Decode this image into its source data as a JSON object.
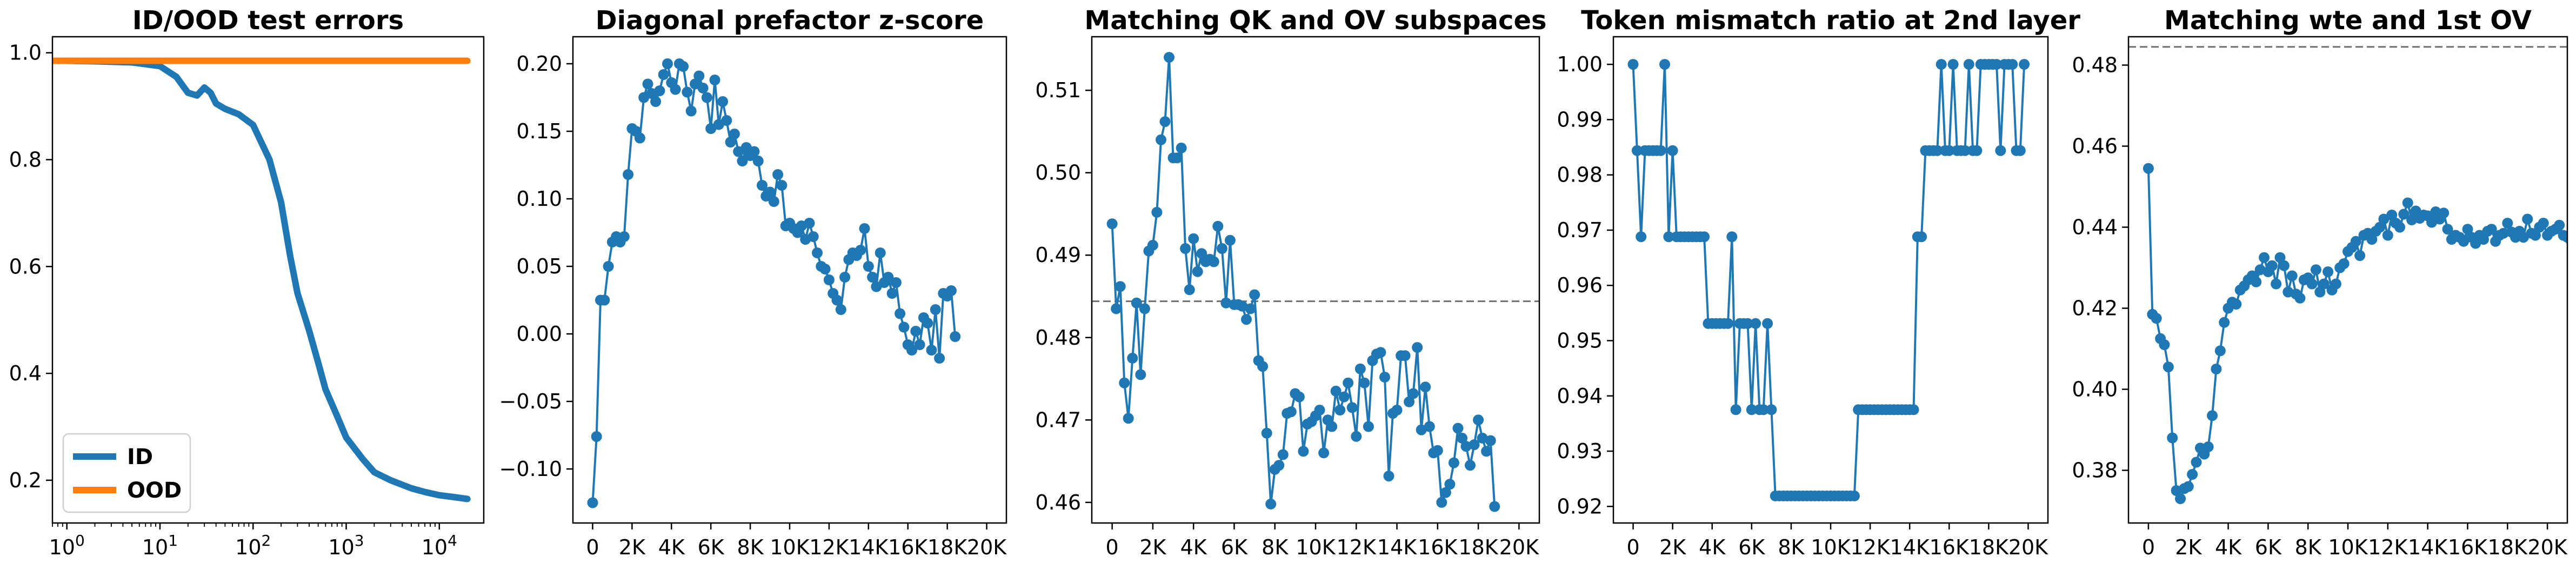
{
  "chart_data": [
    {
      "type": "line",
      "title": "ID/OOD test errors",
      "xscale": "log",
      "xlim": [
        0.7,
        30000
      ],
      "ylim": [
        0.12,
        1.03
      ],
      "xticks": [
        1,
        10,
        100,
        1000,
        10000
      ],
      "xtick_labels": [
        {
          "base": "10",
          "exp": "0"
        },
        {
          "base": "10",
          "exp": "1"
        },
        {
          "base": "10",
          "exp": "2"
        },
        {
          "base": "10",
          "exp": "3"
        },
        {
          "base": "10",
          "exp": "4"
        }
      ],
      "yticks": [
        0.2,
        0.4,
        0.6,
        0.8,
        1.0
      ],
      "ytick_labels": [
        "0.2",
        "0.4",
        "0.6",
        "0.8",
        "1.0"
      ],
      "legend": {
        "position": "lower-left"
      },
      "series": [
        {
          "name": "ID",
          "color": "#1f77b4",
          "x": [
            0.7,
            1,
            2,
            5,
            10,
            15,
            20,
            25,
            30,
            35,
            40,
            50,
            70,
            100,
            150,
            200,
            250,
            300,
            400,
            500,
            600,
            800,
            1000,
            1500,
            2000,
            3000,
            5000,
            7000,
            10000,
            15000,
            20000
          ],
          "y": [
            0.985,
            0.985,
            0.984,
            0.982,
            0.975,
            0.955,
            0.925,
            0.92,
            0.935,
            0.925,
            0.905,
            0.895,
            0.885,
            0.865,
            0.8,
            0.72,
            0.62,
            0.55,
            0.48,
            0.42,
            0.37,
            0.32,
            0.28,
            0.24,
            0.215,
            0.2,
            0.185,
            0.178,
            0.172,
            0.168,
            0.165
          ]
        },
        {
          "name": "OOD",
          "color": "#ff7f0e",
          "x": [
            0.7,
            20000
          ],
          "y": [
            0.985,
            0.985
          ]
        }
      ]
    },
    {
      "type": "line",
      "title": "Diagonal prefactor z-score",
      "xlim": [
        -1000,
        21000
      ],
      "ylim": [
        -0.14,
        0.22
      ],
      "xticks": [
        0,
        2000,
        4000,
        6000,
        8000,
        10000,
        12000,
        14000,
        16000,
        18000,
        20000
      ],
      "xtick_labels": [
        "0",
        "2K",
        "4K",
        "6K",
        "8K",
        "10K",
        "12K",
        "14K",
        "16K",
        "18K",
        "20K"
      ],
      "yticks": [
        -0.1,
        -0.05,
        0.0,
        0.05,
        0.1,
        0.15,
        0.2
      ],
      "ytick_labels": [
        "−0.10",
        "−0.05",
        "0.00",
        "0.05",
        "0.10",
        "0.15",
        "0.20"
      ],
      "x_step": 200,
      "series": [
        {
          "color": "#1f77b4",
          "values": [
            -0.125,
            -0.076,
            0.025,
            0.025,
            0.05,
            0.068,
            0.072,
            0.068,
            0.072,
            0.118,
            0.152,
            0.15,
            0.145,
            0.175,
            0.185,
            0.178,
            0.172,
            0.18,
            0.192,
            0.2,
            0.186,
            0.181,
            0.2,
            0.198,
            0.179,
            0.165,
            0.185,
            0.191,
            0.182,
            0.175,
            0.152,
            0.188,
            0.155,
            0.172,
            0.158,
            0.142,
            0.148,
            0.135,
            0.128,
            0.138,
            0.132,
            0.135,
            0.128,
            0.11,
            0.102,
            0.105,
            0.098,
            0.118,
            0.11,
            0.08,
            0.082,
            0.078,
            0.075,
            0.08,
            0.07,
            0.082,
            0.072,
            0.06,
            0.05,
            0.048,
            0.04,
            0.03,
            0.025,
            0.018,
            0.042,
            0.055,
            0.06,
            0.058,
            0.062,
            0.078,
            0.05,
            0.042,
            0.035,
            0.06,
            0.038,
            0.042,
            0.03,
            0.038,
            0.015,
            0.005,
            -0.008,
            -0.012,
            0.002,
            -0.008,
            0.012,
            0.008,
            -0.012,
            0.018,
            -0.018,
            0.03,
            0.028,
            0.032,
            -0.002
          ]
        }
      ]
    },
    {
      "type": "line",
      "title": "Matching QK and OV subspaces",
      "xlim": [
        -1000,
        21000
      ],
      "ylim": [
        0.4575,
        0.5165
      ],
      "xticks": [
        0,
        2000,
        4000,
        6000,
        8000,
        10000,
        12000,
        14000,
        16000,
        18000,
        20000
      ],
      "xtick_labels": [
        "0",
        "2K",
        "4K",
        "6K",
        "8K",
        "10K",
        "12K",
        "14K",
        "16K",
        "18K",
        "20K"
      ],
      "yticks": [
        0.46,
        0.47,
        0.48,
        0.49,
        0.5,
        0.51
      ],
      "ytick_labels": [
        "0.46",
        "0.47",
        "0.48",
        "0.49",
        "0.50",
        "0.51"
      ],
      "x_step": 200,
      "reference_line": {
        "y": 0.4844,
        "style": "dashed",
        "color": "#707070"
      },
      "series": [
        {
          "color": "#1f77b4",
          "values": [
            0.4938,
            0.4835,
            0.4862,
            0.4745,
            0.4702,
            0.4775,
            0.4842,
            0.4755,
            0.4835,
            0.4905,
            0.4912,
            0.4952,
            0.504,
            0.5062,
            0.514,
            0.5018,
            0.5018,
            0.503,
            0.4908,
            0.4858,
            0.492,
            0.488,
            0.4902,
            0.4892,
            0.4895,
            0.4892,
            0.4935,
            0.4908,
            0.4842,
            0.4918,
            0.484,
            0.484,
            0.4838,
            0.4822,
            0.4835,
            0.4852,
            0.4772,
            0.4765,
            0.4684,
            0.4598,
            0.464,
            0.4645,
            0.4658,
            0.4708,
            0.471,
            0.4732,
            0.4728,
            0.4662,
            0.4695,
            0.4698,
            0.4705,
            0.4712,
            0.466,
            0.47,
            0.4692,
            0.4735,
            0.4712,
            0.4728,
            0.4745,
            0.4715,
            0.468,
            0.4762,
            0.4745,
            0.4692,
            0.4772,
            0.478,
            0.4782,
            0.4752,
            0.4632,
            0.4708,
            0.4712,
            0.4778,
            0.4778,
            0.4722,
            0.4732,
            0.4788,
            0.4688,
            0.474,
            0.4692,
            0.466,
            0.4663,
            0.46,
            0.4612,
            0.4622,
            0.4648,
            0.469,
            0.4678,
            0.4668,
            0.4645,
            0.467,
            0.47,
            0.4678,
            0.4662,
            0.4675,
            0.4595
          ]
        }
      ]
    },
    {
      "type": "line",
      "title": "Token mismatch ratio at 2nd layer",
      "xlim": [
        -1000,
        21000
      ],
      "ylim": [
        0.917,
        1.005
      ],
      "xticks": [
        0,
        2000,
        4000,
        6000,
        8000,
        10000,
        12000,
        14000,
        16000,
        18000,
        20000
      ],
      "xtick_labels": [
        "0",
        "2K",
        "4K",
        "6K",
        "8K",
        "10K",
        "12K",
        "14K",
        "16K",
        "18K",
        "20K"
      ],
      "yticks": [
        0.92,
        0.93,
        0.94,
        0.95,
        0.96,
        0.97,
        0.98,
        0.99,
        1.0
      ],
      "ytick_labels": [
        "0.92",
        "0.93",
        "0.94",
        "0.95",
        "0.96",
        "0.97",
        "0.98",
        "0.99",
        "1.00"
      ],
      "x_step": 200,
      "series": [
        {
          "color": "#1f77b4",
          "values": [
            1.0,
            0.9844,
            0.9688,
            0.9844,
            0.9844,
            0.9844,
            0.9844,
            0.9844,
            1.0,
            0.9688,
            0.9844,
            0.9688,
            0.9688,
            0.9688,
            0.9688,
            0.9688,
            0.9688,
            0.9688,
            0.9688,
            0.9531,
            0.9531,
            0.9531,
            0.9531,
            0.9531,
            0.9531,
            0.9688,
            0.9375,
            0.9531,
            0.9531,
            0.9531,
            0.9375,
            0.9531,
            0.9375,
            0.9375,
            0.9531,
            0.9375,
            0.9219,
            0.9219,
            0.9219,
            0.9219,
            0.9219,
            0.9219,
            0.9219,
            0.9219,
            0.9219,
            0.9219,
            0.9219,
            0.9219,
            0.9219,
            0.9219,
            0.9219,
            0.9219,
            0.9219,
            0.9219,
            0.9219,
            0.9219,
            0.9219,
            0.9375,
            0.9375,
            0.9375,
            0.9375,
            0.9375,
            0.9375,
            0.9375,
            0.9375,
            0.9375,
            0.9375,
            0.9375,
            0.9375,
            0.9375,
            0.9375,
            0.9375,
            0.9688,
            0.9688,
            0.9844,
            0.9844,
            0.9844,
            0.9844,
            1.0,
            0.9844,
            0.9844,
            1.0,
            0.9844,
            0.9844,
            0.9844,
            1.0,
            0.9844,
            0.9844,
            1.0,
            1.0,
            1.0,
            1.0,
            1.0,
            0.9844,
            1.0,
            1.0,
            1.0,
            0.9844,
            0.9844,
            1.0
          ]
        }
      ]
    },
    {
      "type": "line",
      "title": "Matching wte and 1st OV",
      "xlim": [
        -1000,
        21000
      ],
      "ylim": [
        0.367,
        0.487
      ],
      "xticks": [
        0,
        2000,
        4000,
        6000,
        8000,
        10000,
        12000,
        14000,
        16000,
        18000,
        20000
      ],
      "xtick_labels": [
        "0",
        "2K",
        "4K",
        "6K",
        "8K",
        "10K",
        "12K",
        "14K",
        "16K",
        "18K",
        "20K"
      ],
      "yticks": [
        0.38,
        0.4,
        0.42,
        0.44,
        0.46,
        0.48
      ],
      "ytick_labels": [
        "0.38",
        "0.40",
        "0.42",
        "0.44",
        "0.46",
        "0.48"
      ],
      "x_step": 200,
      "reference_line": {
        "y": 0.4845,
        "style": "dashed",
        "color": "#707070"
      },
      "series": [
        {
          "color": "#1f77b4",
          "values": [
            0.4545,
            0.4185,
            0.4175,
            0.4125,
            0.411,
            0.4055,
            0.388,
            0.375,
            0.373,
            0.3755,
            0.376,
            0.379,
            0.382,
            0.3855,
            0.384,
            0.3858,
            0.3935,
            0.405,
            0.4095,
            0.4165,
            0.42,
            0.4215,
            0.421,
            0.4245,
            0.4255,
            0.427,
            0.428,
            0.4265,
            0.4295,
            0.4325,
            0.429,
            0.4305,
            0.426,
            0.4325,
            0.4305,
            0.424,
            0.428,
            0.4235,
            0.4225,
            0.427,
            0.4275,
            0.426,
            0.4295,
            0.424,
            0.426,
            0.429,
            0.4245,
            0.426,
            0.43,
            0.431,
            0.434,
            0.435,
            0.4365,
            0.433,
            0.438,
            0.4385,
            0.437,
            0.439,
            0.44,
            0.442,
            0.438,
            0.443,
            0.441,
            0.44,
            0.4432,
            0.446,
            0.4418,
            0.444,
            0.4422,
            0.443,
            0.4428,
            0.4412,
            0.4438,
            0.442,
            0.4435,
            0.4395,
            0.437,
            0.438,
            0.4375,
            0.4365,
            0.4395,
            0.4375,
            0.436,
            0.438,
            0.437,
            0.439,
            0.4395,
            0.4365,
            0.438,
            0.4385,
            0.441,
            0.4388,
            0.4375,
            0.439,
            0.4375,
            0.442,
            0.4385,
            0.438,
            0.44,
            0.441,
            0.438,
            0.439,
            0.4395,
            0.4405,
            0.438,
            0.4375,
            0.4365,
            0.4345,
            0.4355,
            0.433,
            0.434,
            0.432,
            0.4335,
            0.433
          ]
        }
      ]
    }
  ]
}
